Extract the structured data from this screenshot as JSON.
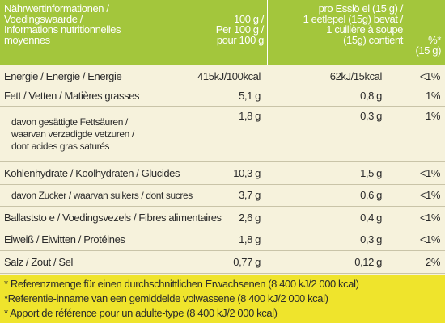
{
  "header": {
    "columns": [
      [
        "Nährwertinformationen /",
        "Voedingswaarde  /",
        "Informations nutritionnelles",
        "moyennes"
      ],
      [
        "100 g /",
        "Per 100 g /",
        "pour 100 g"
      ],
      [
        "pro Esslö  el (15 g) /",
        "1 eetlepel (15g) bevat /",
        "1 cuillère à soupe",
        "(15g) contient"
      ],
      [
        "%*",
        "(15 g)"
      ]
    ]
  },
  "table": {
    "rows": [
      {
        "label": [
          "Energie / Energie / Energie"
        ],
        "per100": "415kJ/100kcal",
        "portion": "62kJ/15kcal",
        "percent": "<1%"
      },
      {
        "label": [
          "Fett / Vetten / Matières grasses"
        ],
        "per100": "5,1 g",
        "portion": "0,8 g",
        "percent": "1%"
      },
      {
        "label": [
          "davon gesättigte Fettsäuren /",
          "waarvan verzadigde vetzuren /",
          "dont acides gras saturés"
        ],
        "per100": "1,8 g",
        "portion": "0,3 g",
        "percent": "1%"
      },
      {
        "label": [
          "Kohlenhydrate / Koolhydraten / Glucides"
        ],
        "per100": "10,3 g",
        "portion": "1,5 g",
        "percent": "<1%"
      },
      {
        "label": [
          "davon Zucker / waarvan suikers / dont sucres"
        ],
        "per100": "3,7 g",
        "portion": "0,6 g",
        "percent": "<1%"
      },
      {
        "label": [
          "Ballaststo  e / Voedingsvezels / Fibres alimentaires"
        ],
        "per100": "2,6 g",
        "portion": "0,4 g",
        "percent": "<1%"
      },
      {
        "label": [
          "Eiweiß / Eiwitten / Protéines"
        ],
        "per100": "1,8 g",
        "portion": "0,3 g",
        "percent": "<1%"
      },
      {
        "label": [
          "Salz / Zout / Sel"
        ],
        "per100": "0,77 g",
        "portion": "0,12 g",
        "percent": "2%"
      }
    ]
  },
  "footnotes": [
    "* Referenzmenge für einen durchschnittlichen Erwachsenen (8 400 kJ/2 000 kcal)",
    "*Referentie-inname van een gemiddelde volwassene (8 400 kJ/2 000 kcal)",
    "* Apport de référence pour un adulte-type (8 400 kJ/2 000 kcal)"
  ]
}
